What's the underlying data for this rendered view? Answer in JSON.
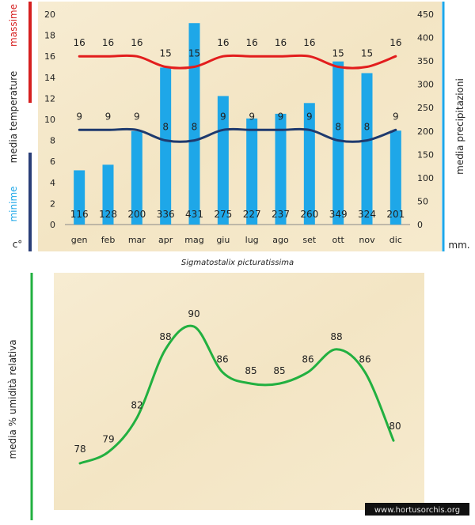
{
  "chart_data": [
    {
      "type": "bar+line",
      "title": "Sigmatostalix picturatissima",
      "categories": [
        "gen",
        "feb",
        "mar",
        "apr",
        "mag",
        "giu",
        "lug",
        "ago",
        "set",
        "ott",
        "nov",
        "dic"
      ],
      "series": [
        {
          "name": "media precipitazioni",
          "type": "bar",
          "axis": "right",
          "values": [
            116,
            128,
            200,
            336,
            431,
            275,
            227,
            237,
            260,
            349,
            324,
            201
          ]
        },
        {
          "name": "massime",
          "type": "line",
          "axis": "left",
          "values": [
            16,
            16,
            16,
            15,
            15,
            16,
            16,
            16,
            16,
            15,
            15,
            16
          ]
        },
        {
          "name": "minime",
          "type": "line",
          "axis": "left",
          "values": [
            9,
            9,
            9,
            8,
            8,
            9,
            9,
            9,
            9,
            8,
            8,
            9
          ]
        }
      ],
      "y_left": {
        "label_top": "massime",
        "label_mid": "media  temperature",
        "label_bottom": "minime",
        "unit": "c°",
        "range": [
          0,
          20
        ],
        "ticks": [
          0,
          2,
          4,
          6,
          8,
          10,
          12,
          14,
          16,
          18,
          20
        ]
      },
      "y_right": {
        "label": "media  precipitazioni",
        "unit": "mm.",
        "range": [
          0,
          450
        ],
        "ticks": [
          0,
          50,
          100,
          150,
          200,
          250,
          300,
          350,
          400,
          450
        ]
      },
      "colors": {
        "bars": "#1ea7e8",
        "max": "#e21d1d",
        "min": "#1e3a6e",
        "left_top_bar": "#d62020",
        "left_bottom_bar": "#2a3e78",
        "right_bar": "#1ea7e8"
      }
    },
    {
      "type": "line",
      "title": "",
      "categories": [
        "gen",
        "feb",
        "mar",
        "apr",
        "mag",
        "giu",
        "lug",
        "ago",
        "set",
        "ott",
        "nov",
        "dic"
      ],
      "series": [
        {
          "name": "media % umidità relativa",
          "values": [
            78,
            79,
            82,
            88,
            90,
            86,
            85,
            85,
            86,
            88,
            86,
            80
          ]
        }
      ],
      "ylabel": "media %  umidità relativa",
      "colors": {
        "line": "#22b040",
        "axis_bar": "#22b040"
      }
    }
  ],
  "watermark": "www.hortusorchis.org"
}
